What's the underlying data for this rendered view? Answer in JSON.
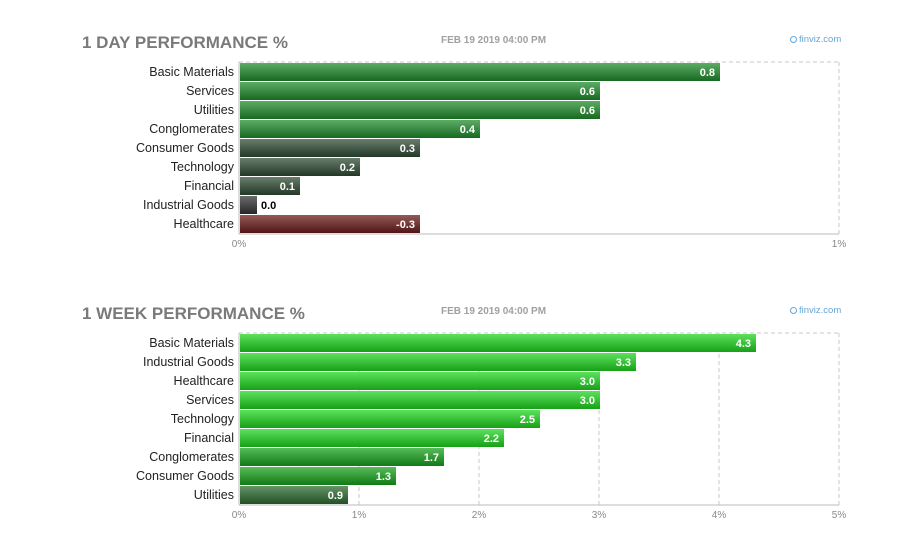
{
  "chart_data": [
    {
      "type": "bar",
      "orientation": "horizontal",
      "title": "1 DAY PERFORMANCE %",
      "date": "FEB 19 2019 04:00 PM",
      "brand": "finviz.com",
      "categories": [
        "Basic Materials",
        "Services",
        "Utilities",
        "Conglomerates",
        "Consumer Goods",
        "Technology",
        "Financial",
        "Industrial Goods",
        "Healthcare"
      ],
      "values": [
        0.8,
        0.6,
        0.6,
        0.4,
        0.3,
        0.2,
        0.1,
        0.0,
        -0.3
      ],
      "value_labels": [
        "0.8",
        "0.6",
        "0.6",
        "0.4",
        "0.3",
        "0.2",
        "0.1",
        "0.0",
        "-0.3"
      ],
      "xlim": [
        0,
        1
      ],
      "ticks": [
        0,
        1
      ],
      "tick_labels": [
        "0%",
        "1%"
      ],
      "grid": true,
      "colors": {
        "positive_strong": "#1e8c2a",
        "positive_weak": "#2f4a33",
        "zero": "#333333",
        "negative": "#6b1a1a"
      }
    },
    {
      "type": "bar",
      "orientation": "horizontal",
      "title": "1 WEEK PERFORMANCE %",
      "date": "FEB 19 2019 04:00 PM",
      "brand": "finviz.com",
      "categories": [
        "Basic Materials",
        "Industrial Goods",
        "Healthcare",
        "Services",
        "Technology",
        "Financial",
        "Conglomerates",
        "Consumer Goods",
        "Utilities"
      ],
      "values": [
        4.3,
        3.3,
        3.0,
        3.0,
        2.5,
        2.2,
        1.7,
        1.3,
        0.9
      ],
      "value_labels": [
        "4.3",
        "3.3",
        "3.0",
        "3.0",
        "2.5",
        "2.2",
        "1.7",
        "1.3",
        "0.9"
      ],
      "xlim": [
        0,
        5
      ],
      "ticks": [
        0,
        1,
        2,
        3,
        4,
        5
      ],
      "tick_labels": [
        "0%",
        "1%",
        "2%",
        "3%",
        "4%",
        "5%"
      ],
      "grid": true,
      "colors": {
        "positive_strong": "#1ed61e",
        "positive_mid": "#15a21a",
        "positive_weak": "#2a6a2e"
      }
    }
  ]
}
